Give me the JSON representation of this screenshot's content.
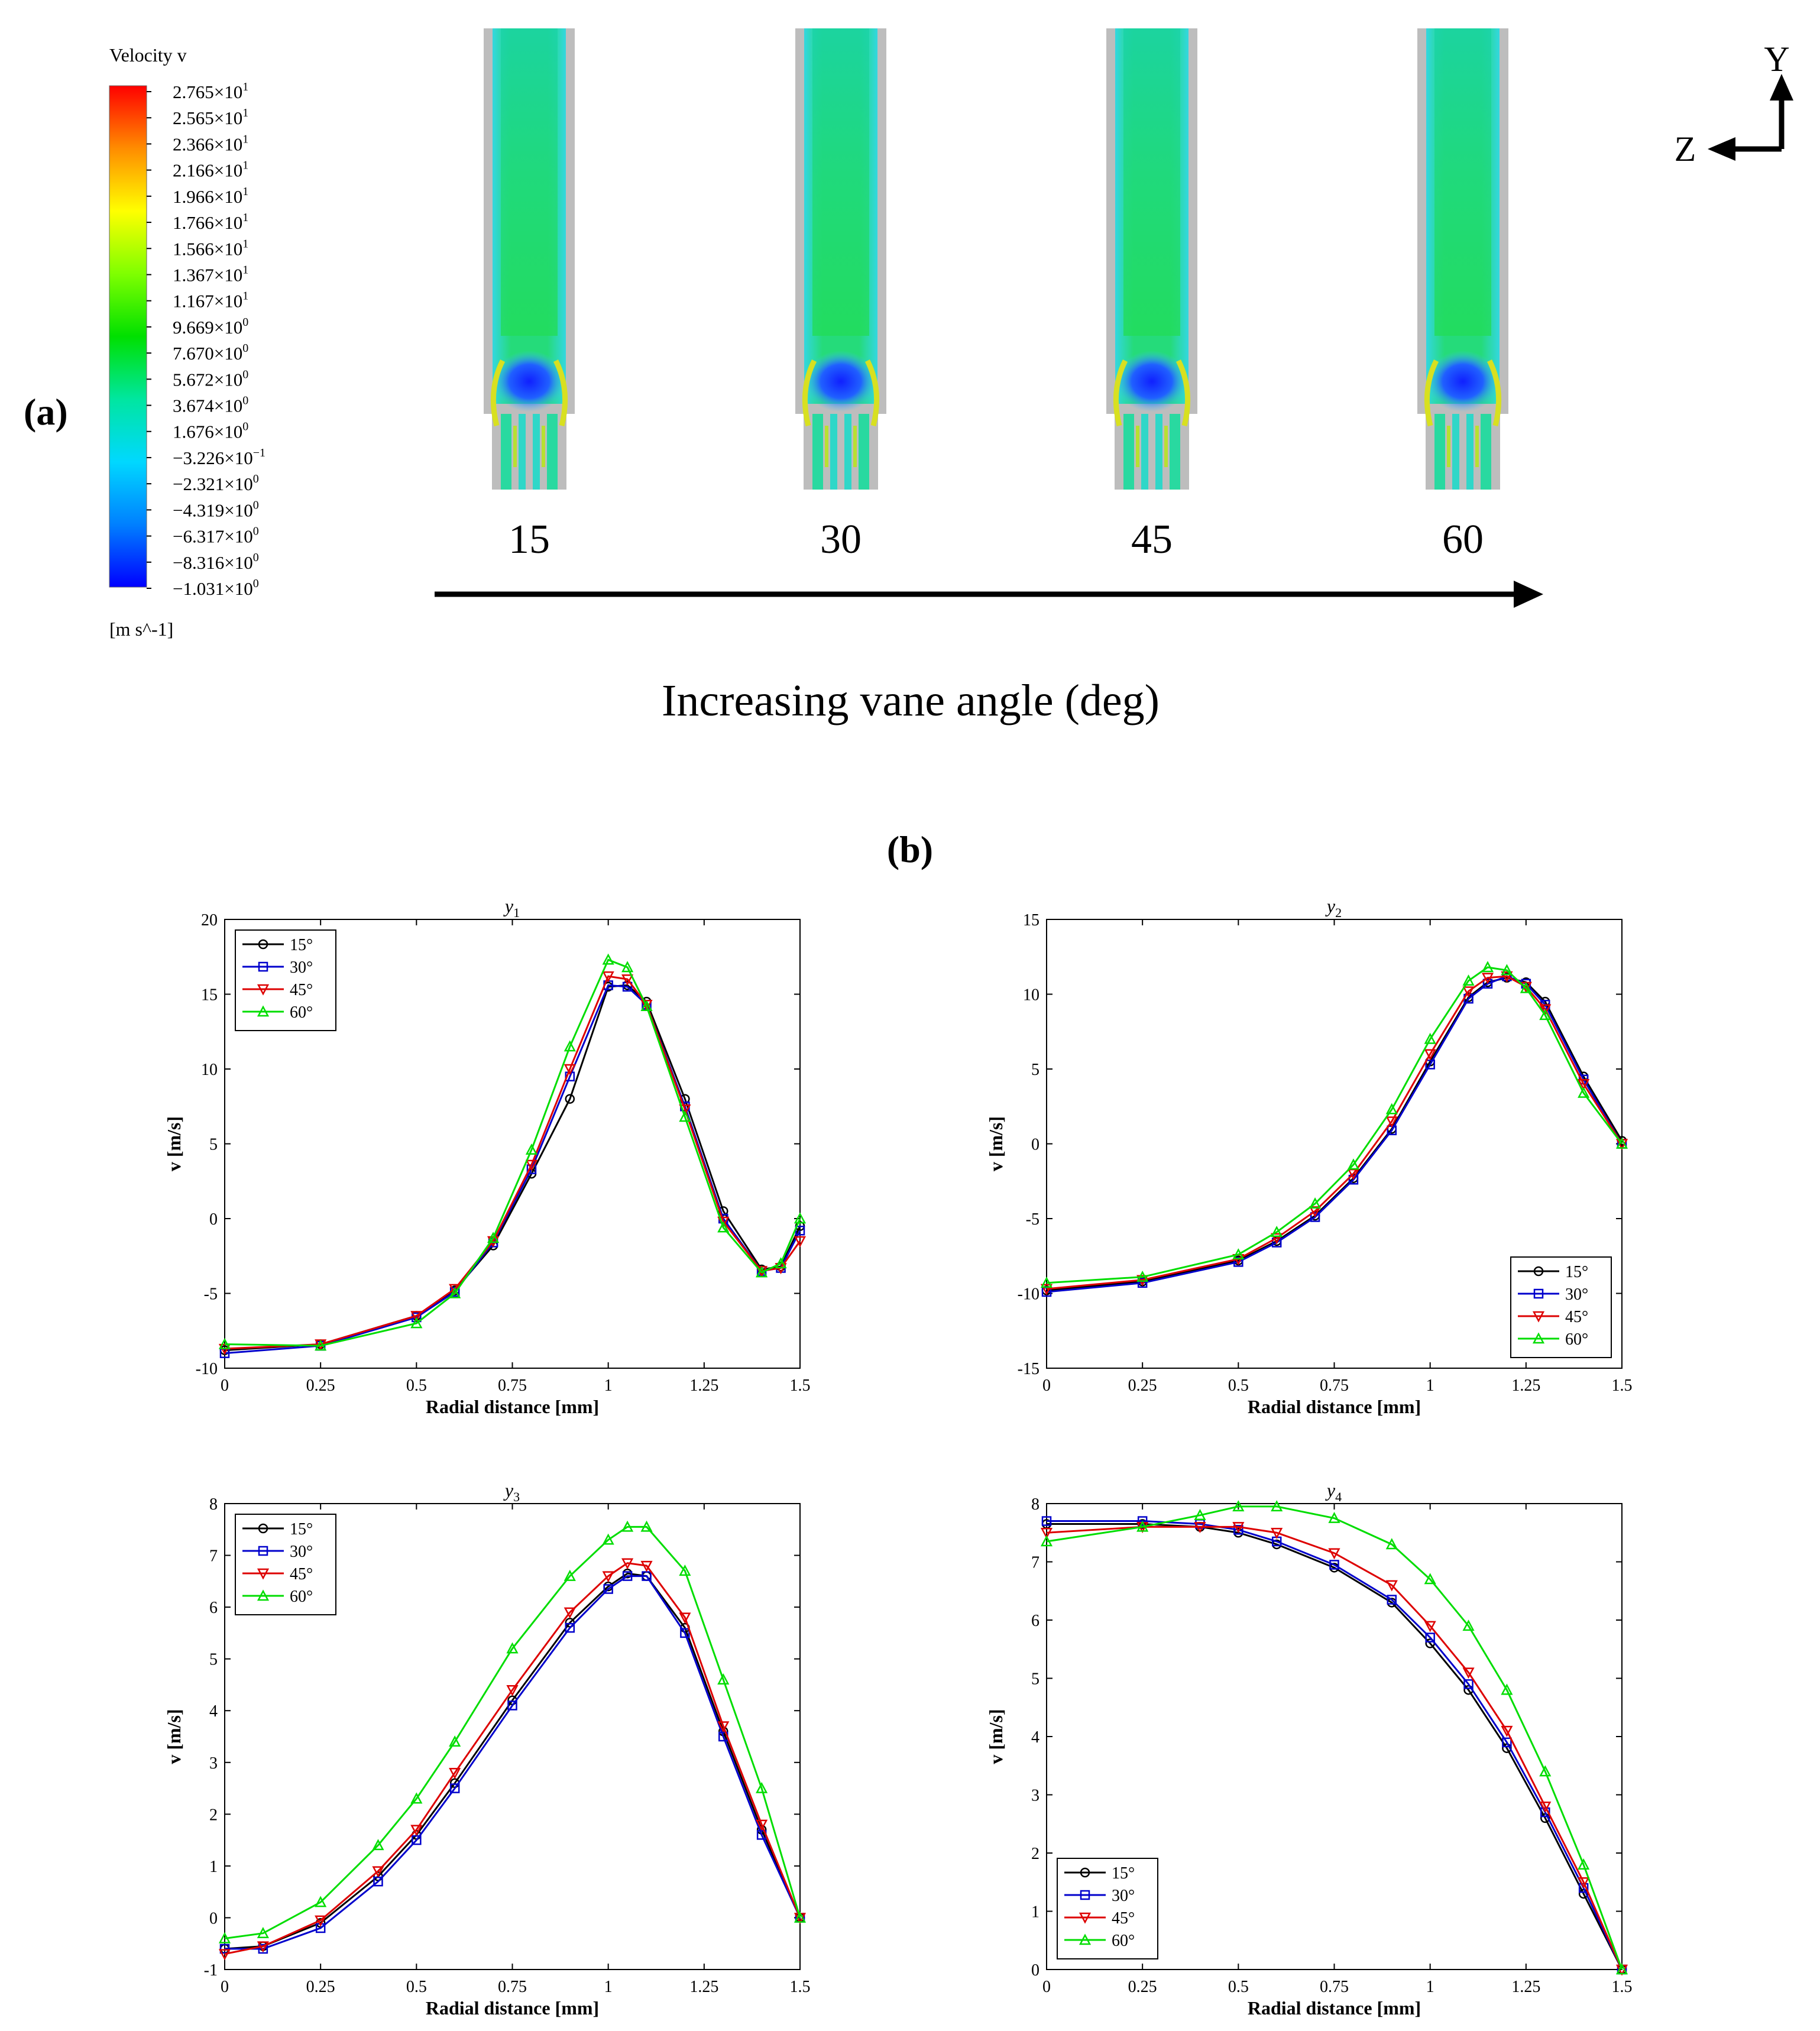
{
  "panel_a": {
    "label": "(a)",
    "colorbar": {
      "title": "Velocity v",
      "unit": "[m s^-1]",
      "ticks": [
        {
          "m": "2.765",
          "e": "1"
        },
        {
          "m": "2.565",
          "e": "1"
        },
        {
          "m": "2.366",
          "e": "1"
        },
        {
          "m": "2.166",
          "e": "1"
        },
        {
          "m": "1.966",
          "e": "1"
        },
        {
          "m": "1.766",
          "e": "1"
        },
        {
          "m": "1.566",
          "e": "1"
        },
        {
          "m": "1.367",
          "e": "1"
        },
        {
          "m": "1.167",
          "e": "1"
        },
        {
          "m": "9.669",
          "e": "0"
        },
        {
          "m": "7.670",
          "e": "0"
        },
        {
          "m": "5.672",
          "e": "0"
        },
        {
          "m": "3.674",
          "e": "0"
        },
        {
          "m": "1.676",
          "e": "0"
        },
        {
          "m": "−3.226",
          "e": "−1"
        },
        {
          "m": "−2.321",
          "e": "0"
        },
        {
          "m": "−4.319",
          "e": "0"
        },
        {
          "m": "−6.317",
          "e": "0"
        },
        {
          "m": "−8.316",
          "e": "0"
        },
        {
          "m": "−1.031",
          "e": "0"
        }
      ],
      "colors": [
        "#ff0000",
        "#ff8c00",
        "#ffff00",
        "#7fff00",
        "#00e000",
        "#00e6a0",
        "#00d8ff",
        "#0080ff",
        "#0000ff"
      ]
    },
    "vane_angles": [
      "15",
      "30",
      "45",
      "60"
    ],
    "arrow_label": "Increasing vane angle (deg)",
    "axes": {
      "y": "Y",
      "z": "Z"
    }
  },
  "panel_b": {
    "label": "(b)"
  },
  "series_style": [
    {
      "name": "15°",
      "color": "#000000",
      "marker": "circle"
    },
    {
      "name": "30°",
      "color": "#0000cc",
      "marker": "square"
    },
    {
      "name": "45°",
      "color": "#dd0000",
      "marker": "triangle-down"
    },
    {
      "name": "60°",
      "color": "#00dd00",
      "marker": "triangle-up"
    }
  ],
  "chart_data": [
    {
      "type": "line",
      "title": "y",
      "title_sub": "1",
      "xlabel": "Radial distance [mm]",
      "ylabel": "v  [m/s]",
      "xlim": [
        0,
        1.5
      ],
      "ylim": [
        -10,
        20
      ],
      "xticks": [
        0,
        0.25,
        0.5,
        0.75,
        1,
        1.25,
        1.5
      ],
      "yticks": [
        -10,
        -5,
        0,
        5,
        10,
        15,
        20
      ],
      "legend_position": "top-left",
      "x": [
        0,
        0.25,
        0.5,
        0.6,
        0.7,
        0.8,
        0.9,
        1.0,
        1.05,
        1.1,
        1.2,
        1.3,
        1.4,
        1.45,
        1.5
      ],
      "series": [
        {
          "name": "15°",
          "values": [
            -8.8,
            -8.4,
            -6.5,
            -4.8,
            -1.8,
            3.0,
            8.0,
            15.5,
            15.6,
            14.5,
            8.0,
            0.5,
            -3.4,
            -3.2,
            -0.5
          ]
        },
        {
          "name": "30°",
          "values": [
            -9.0,
            -8.5,
            -6.6,
            -4.9,
            -1.6,
            3.3,
            9.5,
            15.6,
            15.5,
            14.3,
            7.5,
            0.0,
            -3.5,
            -3.3,
            -0.8
          ]
        },
        {
          "name": "45°",
          "values": [
            -8.7,
            -8.4,
            -6.5,
            -4.7,
            -1.5,
            3.6,
            10.0,
            16.2,
            16.0,
            14.3,
            7.3,
            -0.2,
            -3.5,
            -3.3,
            -1.5
          ]
        },
        {
          "name": "60°",
          "values": [
            -8.4,
            -8.5,
            -7.0,
            -5.0,
            -1.3,
            4.6,
            11.5,
            17.3,
            16.8,
            14.2,
            6.8,
            -0.6,
            -3.6,
            -3.0,
            0.0
          ]
        }
      ]
    },
    {
      "type": "line",
      "title": "y",
      "title_sub": "2",
      "xlabel": "Radial distance [mm]",
      "ylabel": "v  [m/s]",
      "xlim": [
        0,
        1.5
      ],
      "ylim": [
        -15,
        15
      ],
      "xticks": [
        0,
        0.25,
        0.5,
        0.75,
        1,
        1.25,
        1.5
      ],
      "yticks": [
        -15,
        -10,
        -5,
        0,
        5,
        10,
        15
      ],
      "legend_position": "bottom-right",
      "x": [
        0,
        0.25,
        0.5,
        0.6,
        0.7,
        0.8,
        0.9,
        1.0,
        1.1,
        1.15,
        1.2,
        1.25,
        1.3,
        1.4,
        1.5
      ],
      "series": [
        {
          "name": "15°",
          "values": [
            -9.8,
            -9.2,
            -7.8,
            -6.5,
            -4.8,
            -2.3,
            1.0,
            5.5,
            9.8,
            10.8,
            11.1,
            10.8,
            9.5,
            4.5,
            0.2
          ]
        },
        {
          "name": "30°",
          "values": [
            -9.9,
            -9.3,
            -7.9,
            -6.6,
            -4.9,
            -2.4,
            0.9,
            5.3,
            9.7,
            10.7,
            11.2,
            10.7,
            9.3,
            4.3,
            0.0
          ]
        },
        {
          "name": "45°",
          "values": [
            -9.7,
            -9.1,
            -7.7,
            -6.3,
            -4.5,
            -2.0,
            1.5,
            6.0,
            10.2,
            11.1,
            11.2,
            10.5,
            9.0,
            4.0,
            0.0
          ]
        },
        {
          "name": "60°",
          "values": [
            -9.3,
            -8.9,
            -7.4,
            -5.9,
            -4.0,
            -1.4,
            2.3,
            7.0,
            10.9,
            11.8,
            11.6,
            10.4,
            8.6,
            3.4,
            0.0
          ]
        }
      ]
    },
    {
      "type": "line",
      "title": "y",
      "title_sub": "3",
      "xlabel": "Radial distance [mm]",
      "ylabel": "v  [m/s]",
      "xlim": [
        0,
        1.5
      ],
      "ylim": [
        -1,
        8
      ],
      "xticks": [
        0,
        0.25,
        0.5,
        0.75,
        1,
        1.25,
        1.5
      ],
      "yticks": [
        -1,
        0,
        1,
        2,
        3,
        4,
        5,
        6,
        7,
        8
      ],
      "legend_position": "top-left",
      "x": [
        0,
        0.1,
        0.25,
        0.4,
        0.5,
        0.6,
        0.75,
        0.9,
        1.0,
        1.05,
        1.1,
        1.2,
        1.3,
        1.4,
        1.5
      ],
      "series": [
        {
          "name": "15°",
          "values": [
            -0.6,
            -0.55,
            -0.1,
            0.8,
            1.6,
            2.6,
            4.2,
            5.7,
            6.4,
            6.65,
            6.6,
            5.6,
            3.6,
            1.7,
            0.0
          ]
        },
        {
          "name": "30°",
          "values": [
            -0.6,
            -0.6,
            -0.2,
            0.7,
            1.5,
            2.5,
            4.1,
            5.6,
            6.35,
            6.6,
            6.6,
            5.5,
            3.5,
            1.6,
            0.0
          ]
        },
        {
          "name": "45°",
          "values": [
            -0.7,
            -0.55,
            -0.05,
            0.9,
            1.7,
            2.8,
            4.4,
            5.9,
            6.6,
            6.85,
            6.8,
            5.8,
            3.7,
            1.8,
            0.0
          ]
        },
        {
          "name": "60°",
          "values": [
            -0.4,
            -0.3,
            0.3,
            1.4,
            2.3,
            3.4,
            5.2,
            6.6,
            7.3,
            7.55,
            7.55,
            6.7,
            4.6,
            2.5,
            0.0
          ]
        }
      ]
    },
    {
      "type": "line",
      "title": "y",
      "title_sub": "4",
      "xlabel": "Radial distance [mm]",
      "ylabel": "v  [m/s]",
      "xlim": [
        0,
        1.5
      ],
      "ylim": [
        0,
        8
      ],
      "xticks": [
        0,
        0.25,
        0.5,
        0.75,
        1,
        1.25,
        1.5
      ],
      "yticks": [
        0,
        1,
        2,
        3,
        4,
        5,
        6,
        7,
        8
      ],
      "legend_position": "bottom-left",
      "x": [
        0,
        0.25,
        0.4,
        0.5,
        0.6,
        0.75,
        0.9,
        1.0,
        1.1,
        1.2,
        1.3,
        1.4,
        1.5
      ],
      "series": [
        {
          "name": "15°",
          "values": [
            7.65,
            7.65,
            7.6,
            7.5,
            7.3,
            6.9,
            6.3,
            5.6,
            4.8,
            3.8,
            2.6,
            1.3,
            0.0
          ]
        },
        {
          "name": "30°",
          "values": [
            7.7,
            7.7,
            7.65,
            7.55,
            7.35,
            6.95,
            6.35,
            5.7,
            4.9,
            3.9,
            2.7,
            1.4,
            0.0
          ]
        },
        {
          "name": "45°",
          "values": [
            7.5,
            7.6,
            7.6,
            7.6,
            7.5,
            7.15,
            6.6,
            5.9,
            5.1,
            4.1,
            2.8,
            1.5,
            0.0
          ]
        },
        {
          "name": "60°",
          "values": [
            7.35,
            7.6,
            7.8,
            7.95,
            7.95,
            7.75,
            7.3,
            6.7,
            5.9,
            4.8,
            3.4,
            1.8,
            0.0
          ]
        }
      ]
    }
  ]
}
